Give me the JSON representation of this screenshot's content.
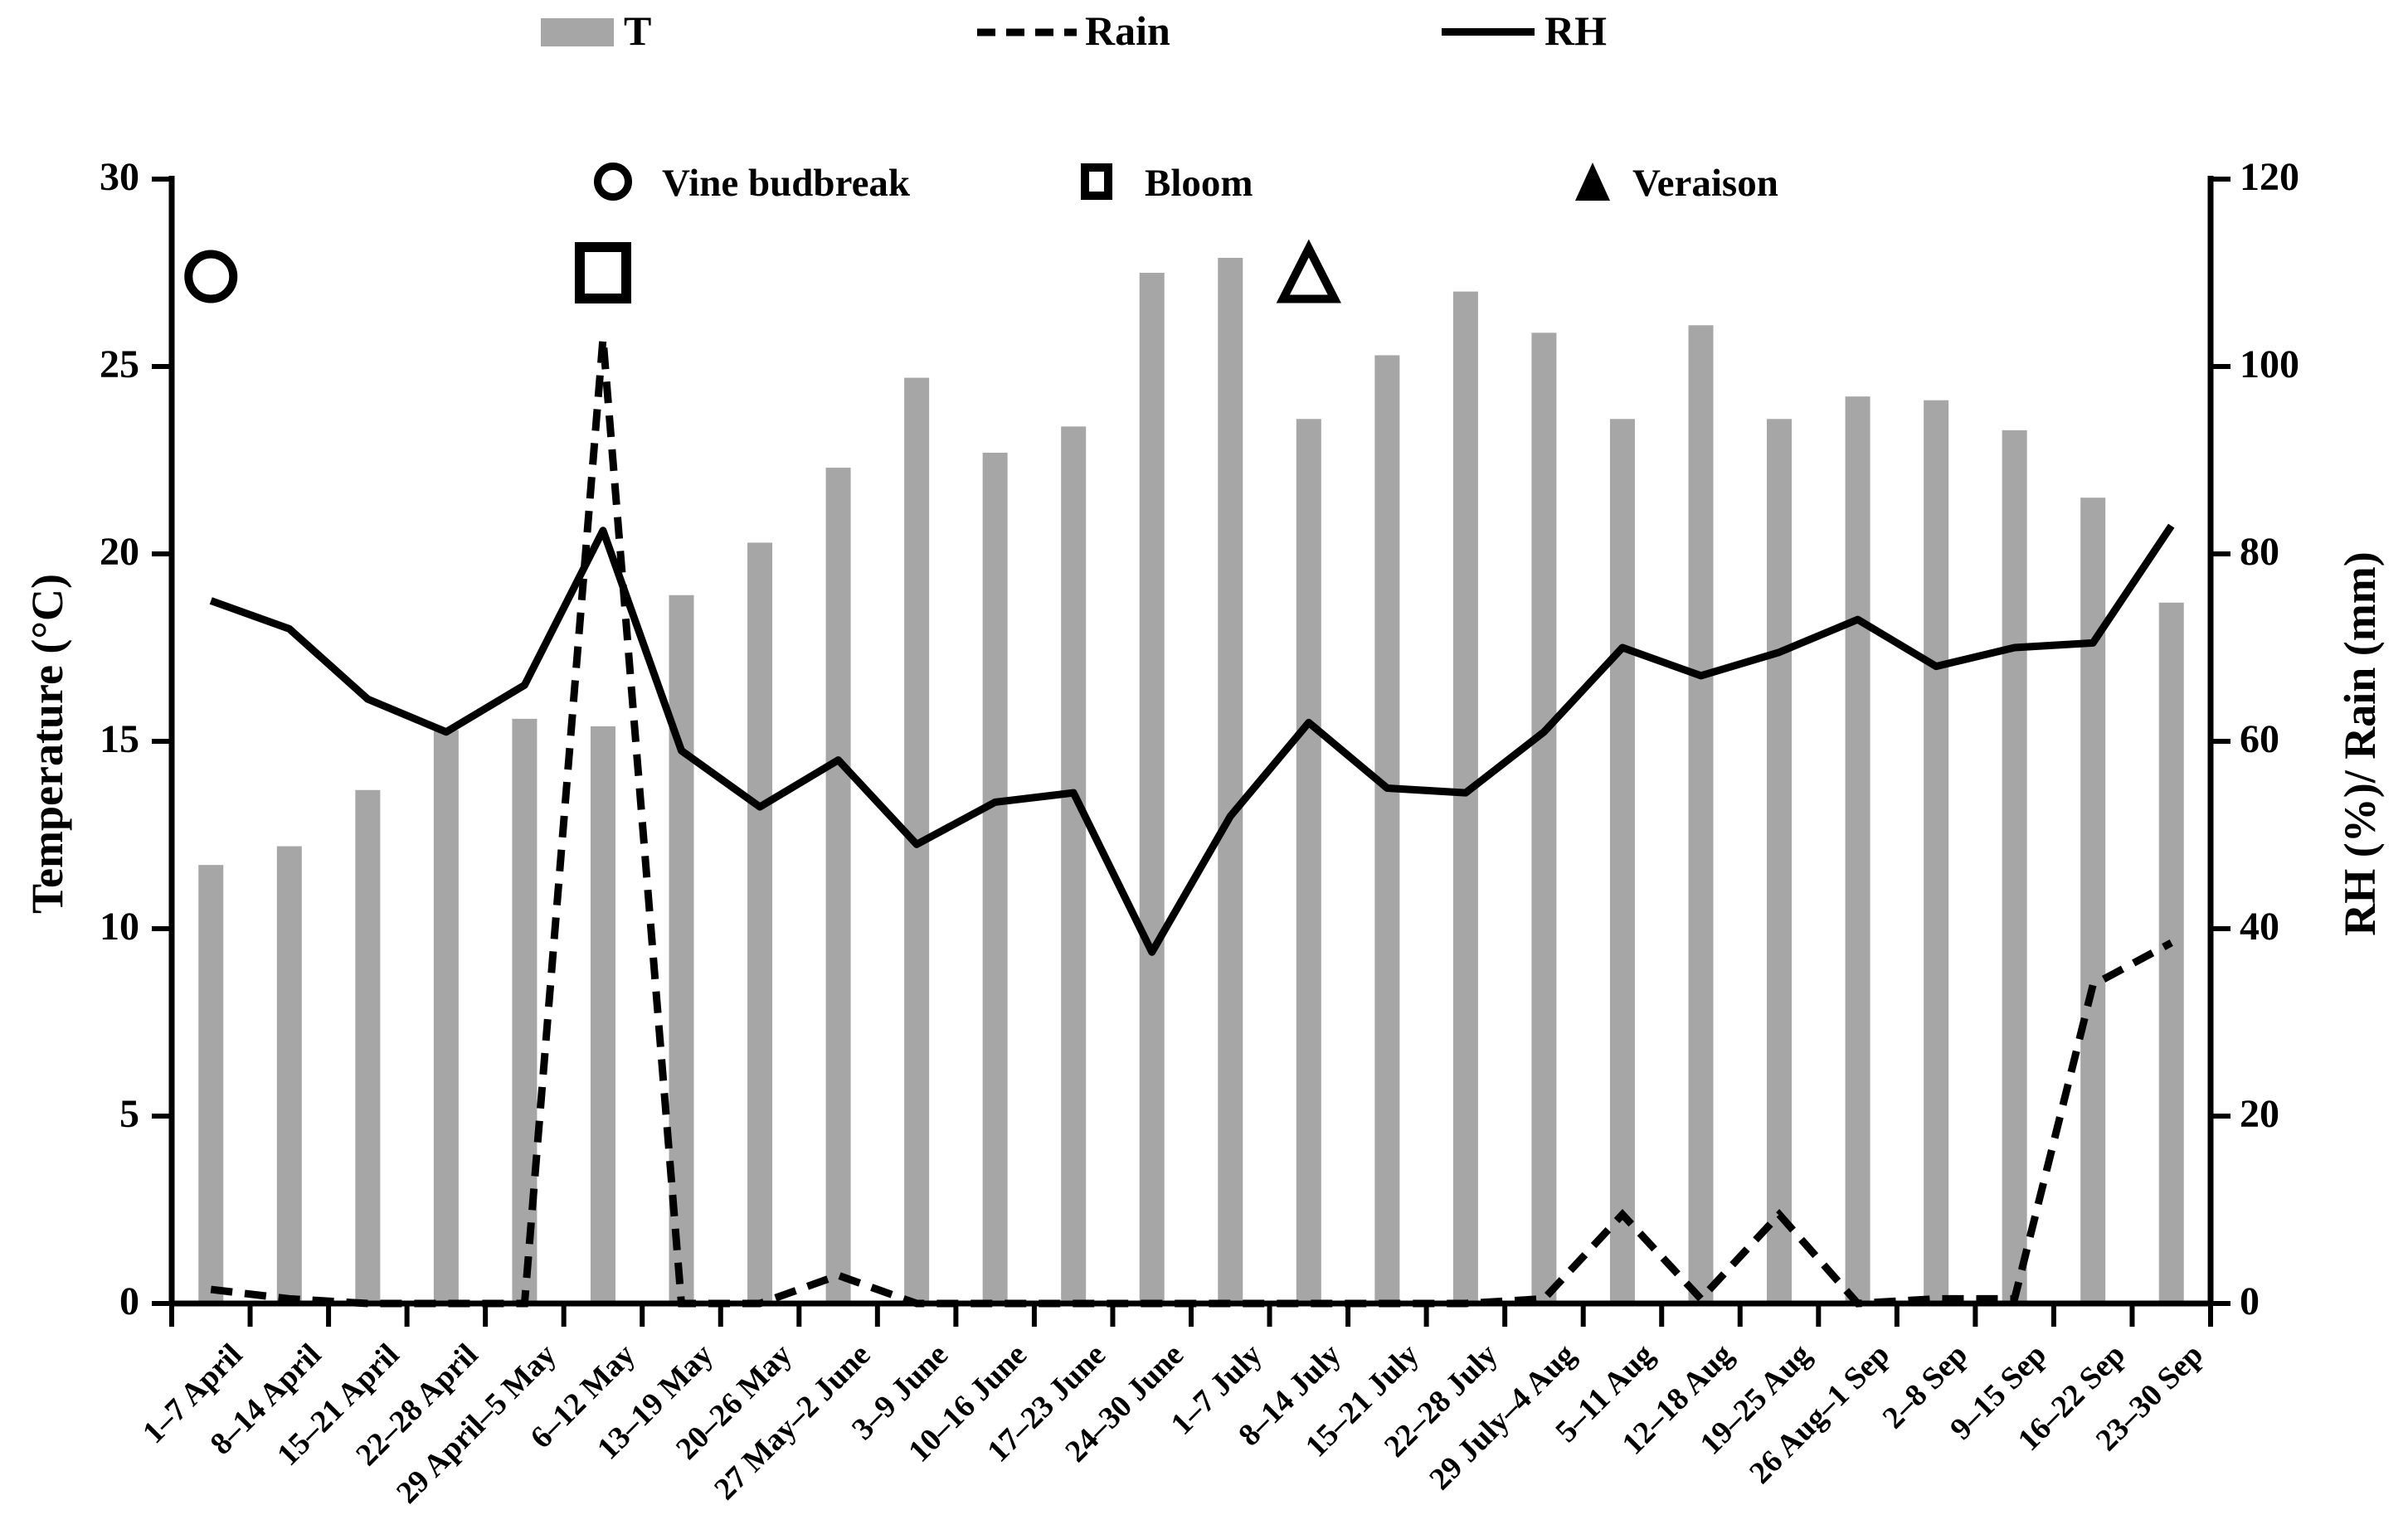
{
  "legend": {
    "series": [
      {
        "label": "T",
        "swatch": "gray-bar-swatch"
      },
      {
        "label": "Rain",
        "swatch": "dashed-line-swatch"
      },
      {
        "label": "RH",
        "swatch": "solid-line-swatch"
      }
    ],
    "phenology": [
      {
        "label": "Vine budbreak",
        "marker": "circle-icon"
      },
      {
        "label": "Bloom",
        "marker": "square-icon"
      },
      {
        "label": "Veraison",
        "marker": "triangle-icon"
      }
    ]
  },
  "axes": {
    "left": {
      "title": "Temperature (°C)",
      "ticks": [
        0,
        5,
        10,
        15,
        20,
        25,
        30
      ],
      "range": [
        0,
        30
      ]
    },
    "right": {
      "title": "RH (%)/ Rain (mm)",
      "ticks": [
        0,
        20,
        40,
        60,
        80,
        100,
        120
      ],
      "range": [
        0,
        120
      ]
    }
  },
  "colors": {
    "bar": "#a6a6a6",
    "line": "#000000",
    "background": "#ffffff"
  },
  "chart_data": {
    "type": "combo-bar-line",
    "title": "",
    "xlabel": "",
    "grid": false,
    "legend_position": "top",
    "ylim_left": [
      0,
      30
    ],
    "ylim_right": [
      0,
      120
    ],
    "categories": [
      "1–7 April",
      "8–14 April",
      "15–21 April",
      "22–28 April",
      "29 April–5 May",
      "6–12 May",
      "13–19 May",
      "20–26 May",
      "27 May–2 June",
      "3–9 June",
      "10–16 June",
      "17–23 June",
      "24–30 June",
      "1–7 July",
      "8–14 July",
      "15–21 July",
      "22–28 July",
      "29 July–4 Aug",
      "5–11 Aug",
      "12–18 Aug",
      "19–25 Aug",
      "26 Aug–1 Sep",
      "2–8 Sep",
      "9–15 Sep",
      "16–22 Sep",
      "23–30 Sep"
    ],
    "series": [
      {
        "name": "T",
        "type": "bar",
        "axis": "left",
        "unit": "°C",
        "values": [
          11.7,
          12.2,
          13.7,
          15.3,
          15.6,
          15.4,
          18.9,
          20.3,
          22.3,
          24.7,
          22.7,
          23.4,
          27.5,
          27.9,
          23.6,
          25.3,
          27.0,
          25.9,
          23.6,
          26.1,
          23.6,
          24.2,
          24.1,
          23.3,
          21.5,
          18.7
        ]
      },
      {
        "name": "Rain",
        "type": "line-dashed",
        "axis": "right",
        "unit": "mm",
        "values": [
          1.5,
          0.5,
          0,
          0,
          0,
          103,
          0,
          0,
          3,
          0,
          0,
          0,
          0,
          0,
          0,
          0,
          0,
          0.5,
          9.5,
          0.5,
          9.5,
          0,
          0.5,
          0.5,
          34,
          38.5
        ]
      },
      {
        "name": "RH",
        "type": "line",
        "axis": "right",
        "unit": "%",
        "values": [
          75,
          72,
          64.5,
          61,
          66,
          82.5,
          59,
          53,
          58,
          49,
          53.5,
          54.5,
          37.5,
          52,
          62,
          55,
          54.5,
          61,
          70,
          67,
          69.5,
          73,
          68,
          70,
          70.5,
          83
        ]
      }
    ],
    "annotations": [
      {
        "label": "Vine budbreak",
        "marker": "circle",
        "category": "1–7 April",
        "y_left_axis": 27.4
      },
      {
        "label": "Bloom",
        "marker": "square",
        "category": "6–12 May",
        "y_left_axis": 27.5
      },
      {
        "label": "Veraison",
        "marker": "triangle",
        "category": "8–14 July",
        "y_left_axis": 27.4
      }
    ]
  }
}
